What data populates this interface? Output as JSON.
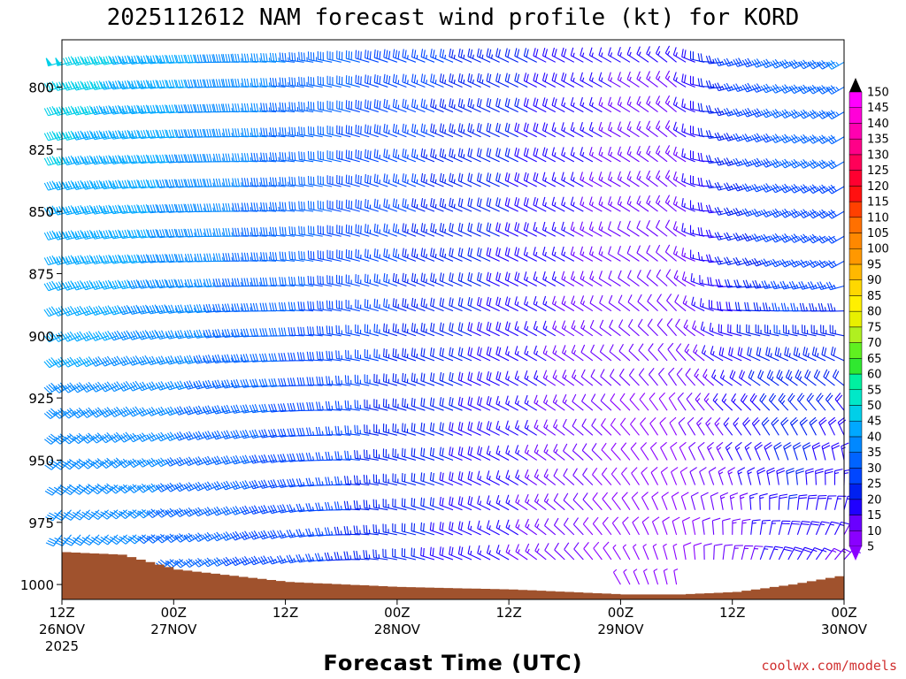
{
  "chart_data": {
    "type": "wind-barb-time-height",
    "title": "2025112612 NAM forecast wind profile (kt) for KORD",
    "xlabel": "Forecast Time (UTC)",
    "ylabel": "",
    "credit": "coolwx.com/models",
    "y_axis": {
      "type": "pressure",
      "units": "hPa",
      "ticks": [
        "800",
        "825",
        "850",
        "875",
        "900",
        "925",
        "950",
        "975",
        "1000"
      ],
      "range": [
        1006,
        781
      ]
    },
    "x_axis": {
      "range_hours": [
        0,
        84
      ],
      "ticks": [
        {
          "hour": 0,
          "line1": "12Z",
          "line2": "26NOV",
          "line3": "2025"
        },
        {
          "hour": 12,
          "line1": "00Z",
          "line2": "27NOV",
          "line3": ""
        },
        {
          "hour": 24,
          "line1": "12Z",
          "line2": "",
          "line3": ""
        },
        {
          "hour": 36,
          "line1": "00Z",
          "line2": "28NOV",
          "line3": ""
        },
        {
          "hour": 48,
          "line1": "12Z",
          "line2": "",
          "line3": ""
        },
        {
          "hour": 60,
          "line1": "00Z",
          "line2": "29NOV",
          "line3": ""
        },
        {
          "hour": 72,
          "line1": "12Z",
          "line2": "",
          "line3": ""
        },
        {
          "hour": 84,
          "line1": "00Z",
          "line2": "30NOV",
          "line3": ""
        }
      ]
    },
    "barb_grid": {
      "hour_step": 1,
      "pressure_levels": [
        1000,
        990,
        980,
        970,
        960,
        950,
        940,
        930,
        920,
        910,
        900,
        890,
        880,
        870,
        860,
        850,
        840,
        830,
        820,
        810,
        800,
        790
      ],
      "keyframes": [
        {
          "hour": 0,
          "surface_p": 983,
          "dir_low": 210,
          "dir_high": 255,
          "spd_low": 35,
          "spd_high": 48
        },
        {
          "hour": 6,
          "surface_p": 984,
          "dir_low": 220,
          "dir_high": 260,
          "spd_low": 36,
          "spd_high": 45
        },
        {
          "hour": 12,
          "surface_p": 990,
          "dir_low": 230,
          "dir_high": 265,
          "spd_low": 33,
          "spd_high": 42
        },
        {
          "hour": 24,
          "surface_p": 995,
          "dir_low": 250,
          "dir_high": 275,
          "spd_low": 27,
          "spd_high": 35
        },
        {
          "hour": 36,
          "surface_p": 997,
          "dir_low": 280,
          "dir_high": 290,
          "spd_low": 22,
          "spd_high": 28
        },
        {
          "hour": 48,
          "surface_p": 998,
          "dir_low": 300,
          "dir_high": 295,
          "spd_low": 15,
          "spd_high": 22
        },
        {
          "hour": 60,
          "surface_p": 1000,
          "dir_low": 330,
          "dir_high": 300,
          "spd_low": 7,
          "spd_high": 15
        },
        {
          "hour": 66,
          "surface_p": 1000,
          "dir_low": 350,
          "dir_high": 310,
          "spd_low": 7,
          "spd_high": 15
        },
        {
          "hour": 72,
          "surface_p": 999,
          "dir_low": 20,
          "dir_high": 255,
          "spd_low": 12,
          "spd_high": 25
        },
        {
          "hour": 78,
          "surface_p": 996,
          "dir_low": 40,
          "dir_high": 245,
          "spd_low": 18,
          "spd_high": 33
        },
        {
          "hour": 84,
          "surface_p": 992,
          "dir_low": 55,
          "dir_high": 240,
          "spd_low": 12,
          "spd_high": 35
        }
      ]
    },
    "colorbar": {
      "levels": [
        "5",
        "10",
        "15",
        "20",
        "25",
        "30",
        "35",
        "40",
        "45",
        "50",
        "55",
        "60",
        "65",
        "70",
        "75",
        "80",
        "85",
        "90",
        "95",
        "100",
        "105",
        "110",
        "115",
        "120",
        "125",
        "130",
        "135",
        "140",
        "145",
        "150"
      ],
      "colors": [
        "#8a00ff",
        "#6a00ff",
        "#2000ff",
        "#0020f0",
        "#0046ff",
        "#0064ff",
        "#0088ff",
        "#00a8ff",
        "#00cfe8",
        "#00e8c8",
        "#00f0a0",
        "#30e830",
        "#60f020",
        "#b0f020",
        "#e8f000",
        "#fff000",
        "#ffd800",
        "#ffb800",
        "#ff9800",
        "#ff8800",
        "#ff7000",
        "#ff4000",
        "#ff1010",
        "#ff0030",
        "#ff0058",
        "#ff0088",
        "#ff00b0",
        "#ff00d8",
        "#ff00ff",
        "#000000"
      ]
    },
    "ground_color": "#a0522d",
    "legend": "colorbar-right"
  }
}
